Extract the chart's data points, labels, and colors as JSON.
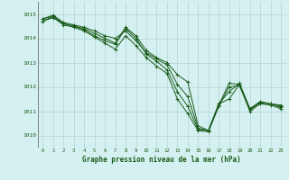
{
  "title": "Graphe pression niveau de la mer (hPa)",
  "bg_color": "#d5f0f0",
  "grid_color": "#b8d8d8",
  "line_color": "#1a5c1a",
  "marker_color": "#1a5c1a",
  "xlim": [
    -0.5,
    23.5
  ],
  "ylim": [
    1009.5,
    1015.5
  ],
  "yticks": [
    1010,
    1011,
    1012,
    1013,
    1014,
    1015
  ],
  "xticks": [
    0,
    1,
    2,
    3,
    4,
    5,
    6,
    7,
    8,
    9,
    10,
    11,
    12,
    13,
    14,
    15,
    16,
    17,
    18,
    19,
    20,
    21,
    22,
    23
  ],
  "series": [
    [
      1014.8,
      1014.9,
      1014.6,
      1014.5,
      1014.4,
      1014.2,
      1014.0,
      1013.8,
      1014.45,
      1014.1,
      1013.5,
      1013.2,
      1013.0,
      1012.5,
      1012.2,
      1010.4,
      1010.2,
      1011.3,
      1011.5,
      1012.1,
      1011.1,
      1011.35,
      1011.3,
      1011.25
    ],
    [
      1014.8,
      1014.95,
      1014.65,
      1014.55,
      1014.45,
      1014.3,
      1014.1,
      1014.0,
      1014.3,
      1013.9,
      1013.4,
      1013.15,
      1012.9,
      1012.1,
      1011.6,
      1010.3,
      1010.2,
      1011.3,
      1011.8,
      1012.15,
      1011.1,
      1011.4,
      1011.3,
      1011.2
    ],
    [
      1014.7,
      1014.9,
      1014.6,
      1014.5,
      1014.35,
      1014.1,
      1013.9,
      1013.75,
      1014.4,
      1014.0,
      1013.35,
      1013.05,
      1012.7,
      1011.8,
      1011.2,
      1010.25,
      1010.2,
      1011.25,
      1012.15,
      1012.1,
      1011.05,
      1011.35,
      1011.3,
      1011.15
    ],
    [
      1014.7,
      1014.85,
      1014.55,
      1014.45,
      1014.3,
      1014.05,
      1013.8,
      1013.55,
      1014.1,
      1013.7,
      1013.2,
      1012.85,
      1012.55,
      1011.5,
      1010.9,
      1010.2,
      1010.15,
      1011.2,
      1012.0,
      1012.05,
      1011.0,
      1011.3,
      1011.25,
      1011.1
    ]
  ]
}
